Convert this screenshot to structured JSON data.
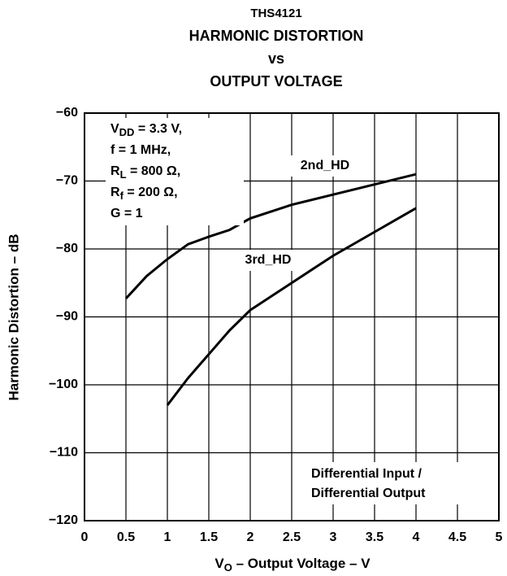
{
  "chart_data": {
    "type": "line",
    "title": [
      "THS4121",
      "HARMONIC DISTORTION",
      "vs",
      "OUTPUT VOLTAGE"
    ],
    "xlabel": [
      "V",
      "O",
      " – Output Voltage – V"
    ],
    "ylabel": "Harmonic Distortion – dB",
    "xlim": [
      0,
      5
    ],
    "ylim": [
      -120,
      -60
    ],
    "xticks": [
      0,
      0.5,
      1,
      1.5,
      2,
      2.5,
      3,
      3.5,
      4,
      4.5,
      5
    ],
    "yticks": [
      {
        "value": -120,
        "label": "−120"
      },
      {
        "value": -110,
        "label": "−110"
      },
      {
        "value": -100,
        "label": "−100"
      },
      {
        "value": -90,
        "label": "−90"
      },
      {
        "value": -80,
        "label": "−80"
      },
      {
        "value": -70,
        "label": "−70"
      },
      {
        "value": -60,
        "label": "−60"
      }
    ],
    "grid": true,
    "series": [
      {
        "name": "2nd_HD",
        "color": "#000000",
        "x": [
          0.5,
          0.75,
          1,
          1.25,
          1.5,
          1.75,
          2,
          2.5,
          3,
          3.5,
          4
        ],
        "values": [
          -87.3,
          -84,
          -81.5,
          -79.3,
          -78.2,
          -77.2,
          -75.5,
          -73.5,
          -72,
          -70.5,
          -69
        ]
      },
      {
        "name": "3rd_HD",
        "color": "#000000",
        "x": [
          1,
          1.25,
          1.5,
          1.75,
          2,
          2.5,
          3,
          3.5,
          4
        ],
        "values": [
          -103,
          -99,
          -95.5,
          -92,
          -89,
          -85,
          -81,
          -77.5,
          -74
        ]
      }
    ],
    "conditions": [
      [
        "V",
        "DD",
        " = 3.3 V,"
      ],
      [
        "f = 1 MHz,"
      ],
      [
        "R",
        "L",
        " = 800 Ω,"
      ],
      [
        "R",
        "f",
        " = 200 Ω,"
      ],
      [
        "G = 1"
      ]
    ],
    "note": [
      "Differential Input /",
      "Differential Output"
    ]
  }
}
